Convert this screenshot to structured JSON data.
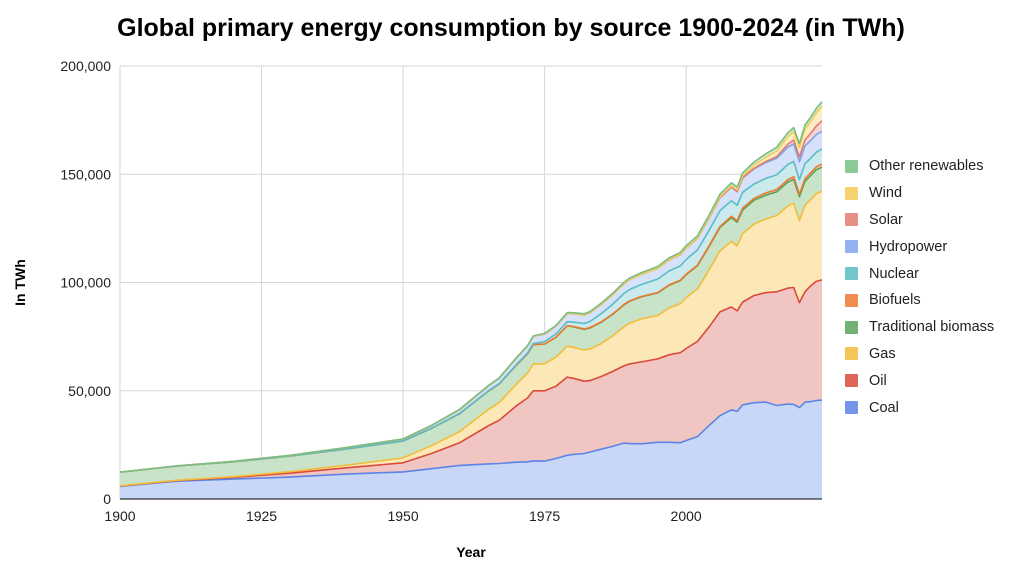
{
  "chart_data": {
    "type": "area",
    "stacked": true,
    "title": "Global primary energy consumption by source 1900-2024 (in TWh)",
    "xlabel": "Year",
    "ylabel": "In TWh",
    "xlim": [
      1900,
      2024
    ],
    "ylim": [
      0,
      200000
    ],
    "x_ticks": [
      "1900",
      "1925",
      "1950",
      "1975",
      "2000"
    ],
    "y_ticks": [
      "0",
      "50,000",
      "100,000",
      "150,000",
      "200,000"
    ],
    "grid": true,
    "legend_position": "right",
    "x": [
      1900,
      1910,
      1920,
      1930,
      1940,
      1950,
      1955,
      1960,
      1965,
      1967,
      1970,
      1972,
      1973,
      1975,
      1977,
      1979,
      1980,
      1982,
      1983,
      1985,
      1987,
      1989,
      1990,
      1992,
      1995,
      1997,
      1999,
      2000,
      2002,
      2004,
      2006,
      2008,
      2009,
      2010,
      2012,
      2014,
      2016,
      2018,
      2019,
      2020,
      2021,
      2022,
      2023,
      2024
    ],
    "series": [
      {
        "name": "Coal",
        "color": "#5b84e6",
        "fill": "#c8d7f7",
        "values": [
          5800,
          8200,
          9200,
          10100,
          11500,
          12500,
          14000,
          15500,
          16200,
          16400,
          17000,
          17200,
          17600,
          17500,
          18700,
          20200,
          20600,
          21000,
          21700,
          23000,
          24300,
          25800,
          25600,
          25500,
          26200,
          26200,
          26000,
          27000,
          28800,
          33800,
          38500,
          41200,
          40500,
          43500,
          44500,
          44800,
          43200,
          43900,
          43700,
          42200,
          44700,
          45000,
          45500,
          45700
        ]
      },
      {
        "name": "Oil",
        "color": "#d94a3b",
        "fill": "#f1c6c2",
        "values": [
          200,
          300,
          800,
          1800,
          2900,
          4200,
          7000,
          10500,
          17500,
          20000,
          26000,
          29500,
          32400,
          32500,
          33400,
          36100,
          35200,
          33400,
          33000,
          33600,
          34600,
          35700,
          36800,
          37800,
          38500,
          40400,
          41600,
          42500,
          44000,
          45500,
          48000,
          47500,
          46400,
          47500,
          49500,
          50500,
          52500,
          53500,
          54000,
          48500,
          51000,
          53500,
          55000,
          55500
        ]
      },
      {
        "name": "Gas",
        "color": "#f1bd3a",
        "fill": "#fbe8b6",
        "values": [
          100,
          150,
          300,
          700,
          1200,
          2300,
          3600,
          5200,
          7500,
          8200,
          10000,
          11500,
          12300,
          12500,
          13400,
          14300,
          14300,
          14400,
          14600,
          15200,
          16400,
          18000,
          18800,
          19800,
          20100,
          21600,
          22700,
          23500,
          24300,
          26300,
          28200,
          30300,
          30000,
          31600,
          33000,
          34000,
          35200,
          38000,
          38900,
          37900,
          40000,
          39800,
          40500,
          41000
        ]
      },
      {
        "name": "Traditional biomass",
        "color": "#58a35a",
        "fill": "#c9e3c8",
        "values": [
          6300,
          6600,
          6900,
          7200,
          7500,
          7800,
          8000,
          8300,
          8500,
          8600,
          8800,
          8900,
          9000,
          9100,
          9200,
          9400,
          9500,
          9600,
          9700,
          9800,
          9900,
          10100,
          10100,
          10200,
          10400,
          10500,
          10600,
          10600,
          10700,
          10800,
          10800,
          10900,
          10900,
          10900,
          11000,
          11000,
          11000,
          11000,
          11000,
          11000,
          11000,
          11100,
          11100,
          11100
        ]
      },
      {
        "name": "Biofuels",
        "color": "#ec7a2f",
        "fill": "#f9d7bd",
        "values": [
          0,
          0,
          0,
          0,
          0,
          0,
          0,
          0,
          0,
          0,
          0,
          0,
          0,
          0,
          0,
          0,
          100,
          150,
          150,
          180,
          200,
          200,
          200,
          200,
          200,
          200,
          200,
          200,
          250,
          300,
          450,
          700,
          750,
          850,
          900,
          1000,
          1050,
          1150,
          1200,
          1100,
          1200,
          1250,
          1300,
          1400
        ]
      },
      {
        "name": "Nuclear",
        "color": "#5cbcc4",
        "fill": "#caeaed",
        "values": [
          0,
          0,
          0,
          0,
          0,
          0,
          0,
          10,
          80,
          120,
          220,
          400,
          500,
          1100,
          1500,
          1900,
          2000,
          2500,
          2800,
          3800,
          4500,
          5100,
          5200,
          5500,
          6200,
          6400,
          6600,
          6800,
          7000,
          7200,
          7300,
          7200,
          7100,
          7300,
          6600,
          6700,
          6800,
          7000,
          7100,
          6800,
          7000,
          6700,
          6800,
          7000
        ]
      },
      {
        "name": "Hydropower",
        "color": "#7ea3ee",
        "fill": "#d6e1fa",
        "values": [
          0,
          50,
          150,
          350,
          650,
          900,
          1300,
          1800,
          2300,
          2500,
          3000,
          3200,
          3300,
          3500,
          3600,
          3800,
          3900,
          4000,
          4100,
          4300,
          4400,
          4500,
          4600,
          4700,
          5000,
          5200,
          5300,
          5300,
          5400,
          5700,
          6000,
          6300,
          6300,
          6600,
          7000,
          7300,
          7600,
          8000,
          8100,
          8300,
          8200,
          8200,
          8100,
          8200
        ]
      },
      {
        "name": "Solar",
        "color": "#e37b6f",
        "fill": "#f6d4cf",
        "values": [
          0,
          0,
          0,
          0,
          0,
          0,
          0,
          0,
          0,
          0,
          0,
          0,
          0,
          0,
          0,
          0,
          0,
          0,
          0,
          0,
          0,
          0,
          0,
          0,
          0,
          0,
          0,
          0,
          0,
          10,
          20,
          40,
          50,
          90,
          250,
          500,
          800,
          1400,
          1800,
          2200,
          2700,
          3300,
          4000,
          4800
        ]
      },
      {
        "name": "Wind",
        "color": "#f3cc57",
        "fill": "#fbeec4",
        "values": [
          0,
          0,
          0,
          0,
          0,
          0,
          0,
          0,
          0,
          0,
          0,
          0,
          0,
          0,
          0,
          0,
          0,
          0,
          0,
          0,
          0,
          0,
          0,
          0,
          10,
          30,
          50,
          80,
          120,
          200,
          350,
          600,
          750,
          950,
          1400,
          1900,
          2600,
          3500,
          3900,
          4300,
          5000,
          5600,
          6100,
          6700
        ]
      },
      {
        "name": "Other renewables",
        "color": "#79be85",
        "fill": "#d2ebd5",
        "values": [
          0,
          0,
          0,
          0,
          0,
          0,
          50,
          100,
          150,
          150,
          200,
          200,
          250,
          300,
          350,
          400,
          450,
          500,
          500,
          550,
          600,
          650,
          700,
          750,
          800,
          850,
          900,
          950,
          1000,
          1100,
          1200,
          1300,
          1350,
          1400,
          1500,
          1600,
          1700,
          1800,
          1850,
          1850,
          1900,
          1950,
          2000,
          2050
        ]
      }
    ]
  }
}
